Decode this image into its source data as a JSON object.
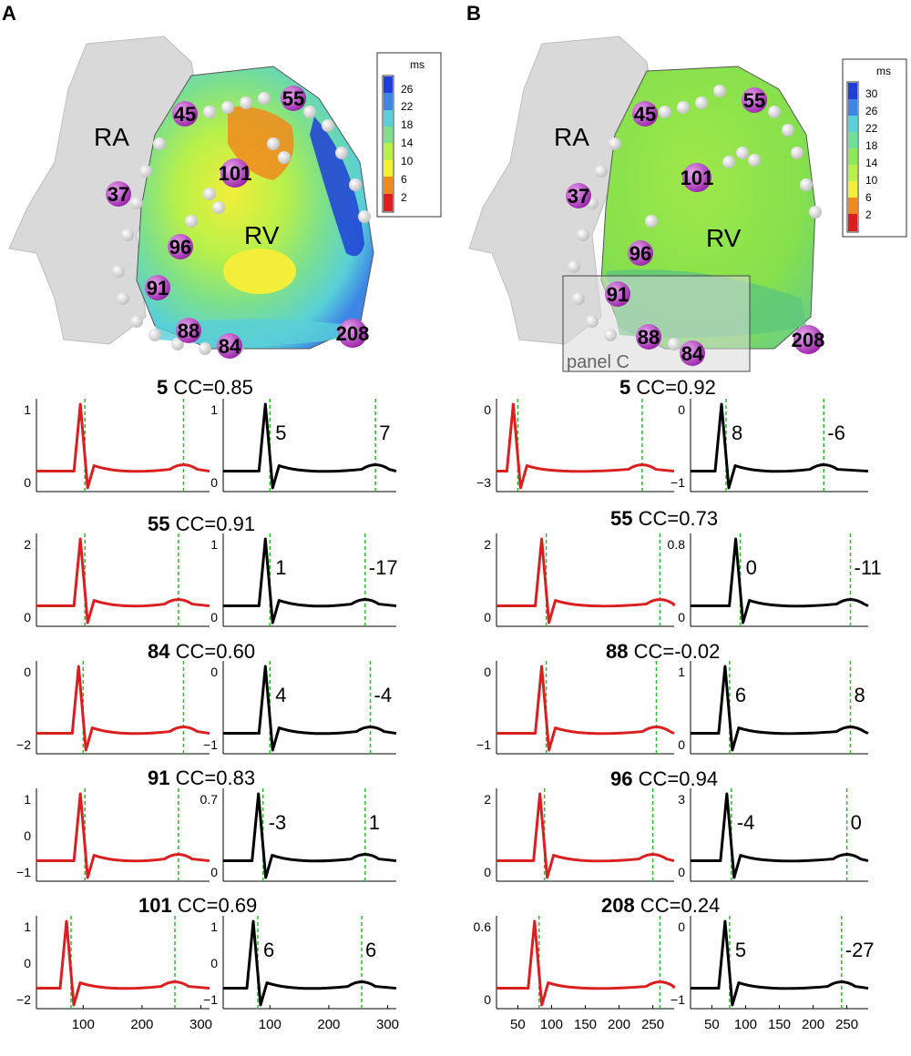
{
  "panels": [
    {
      "letter": "A",
      "map": {
        "labels": [
          "RA",
          "RV"
        ],
        "colorbar": {
          "unit": "ms",
          "ticks": [
            "26",
            "22",
            "18",
            "14",
            "10",
            "6",
            "2"
          ],
          "colors": [
            "#1f3fd6",
            "#3e86e6",
            "#59d0d8",
            "#7ee08a",
            "#b8f04a",
            "#f2ee3a",
            "#f08a1c",
            "#d91f1f"
          ]
        },
        "electrodes": [
          "45",
          "55",
          "101",
          "37",
          "96",
          "91",
          "88",
          "84",
          "208"
        ]
      },
      "plots": [
        {
          "id": "5",
          "cc": "CC=0.85",
          "sim_ticks": [
            "1",
            "0"
          ],
          "rec_ticks": [
            "1",
            "0"
          ],
          "dt1": "5",
          "dt2": "7"
        },
        {
          "id": "55",
          "cc": "CC=0.91",
          "sim_ticks": [
            "2",
            "0"
          ],
          "rec_ticks": [
            "1",
            "0"
          ],
          "dt1": "1",
          "dt2": "-17"
        },
        {
          "id": "84",
          "cc": "CC=0.60",
          "sim_ticks": [
            "0",
            "−2"
          ],
          "rec_ticks": [
            "0",
            "−1"
          ],
          "dt1": "4",
          "dt2": "-4"
        },
        {
          "id": "91",
          "cc": "CC=0.83",
          "sim_ticks": [
            "1",
            "0",
            "−1"
          ],
          "rec_ticks": [
            "0.7",
            "0"
          ],
          "dt1": "-3",
          "dt2": "1"
        },
        {
          "id": "101",
          "cc": "CC=0.69",
          "sim_ticks": [
            "1",
            "0",
            "−2"
          ],
          "rec_ticks": [
            "1",
            "0",
            "−1"
          ],
          "dt1": "6",
          "dt2": "6"
        }
      ],
      "xticks": [
        "100",
        "200",
        "300"
      ]
    },
    {
      "letter": "B",
      "map": {
        "labels": [
          "RA",
          "RV",
          "panel C"
        ],
        "colorbar": {
          "unit": "ms",
          "ticks": [
            "30",
            "26",
            "22",
            "18",
            "14",
            "10",
            "6",
            "2"
          ],
          "colors": [
            "#1f3fd6",
            "#3e86e6",
            "#59d0d8",
            "#6ee09a",
            "#8ee858",
            "#b8f04a",
            "#f2ee3a",
            "#f08a1c",
            "#d91f1f"
          ]
        },
        "electrodes": [
          "45",
          "55",
          "101",
          "37",
          "96",
          "91",
          "88",
          "84",
          "208"
        ]
      },
      "plots": [
        {
          "id": "5",
          "cc": "CC=0.92",
          "sim_ticks": [
            "0",
            "−3"
          ],
          "rec_ticks": [
            "0",
            "−1"
          ],
          "dt1": "8",
          "dt2": "-6"
        },
        {
          "id": "55",
          "cc": "CC=0.73",
          "sim_ticks": [
            "2",
            "0"
          ],
          "rec_ticks": [
            "0.8",
            "0"
          ],
          "dt1": "0",
          "dt2": "-11"
        },
        {
          "id": "88",
          "cc": "CC=-0.02",
          "sim_ticks": [
            "0",
            "−1"
          ],
          "rec_ticks": [
            "1",
            "0"
          ],
          "dt1": "6",
          "dt2": "8"
        },
        {
          "id": "96",
          "cc": "CC=0.94",
          "sim_ticks": [
            "2",
            "0"
          ],
          "rec_ticks": [
            "3",
            "0"
          ],
          "dt1": "-4",
          "dt2": "0"
        },
        {
          "id": "208",
          "cc": "CC=0.24",
          "sim_ticks": [
            "0.6",
            "0"
          ],
          "rec_ticks": [
            "0",
            "−1"
          ],
          "dt1": "5",
          "dt2": "-27"
        }
      ],
      "xticks": [
        "50",
        "100",
        "150",
        "200",
        "250"
      ]
    }
  ]
}
